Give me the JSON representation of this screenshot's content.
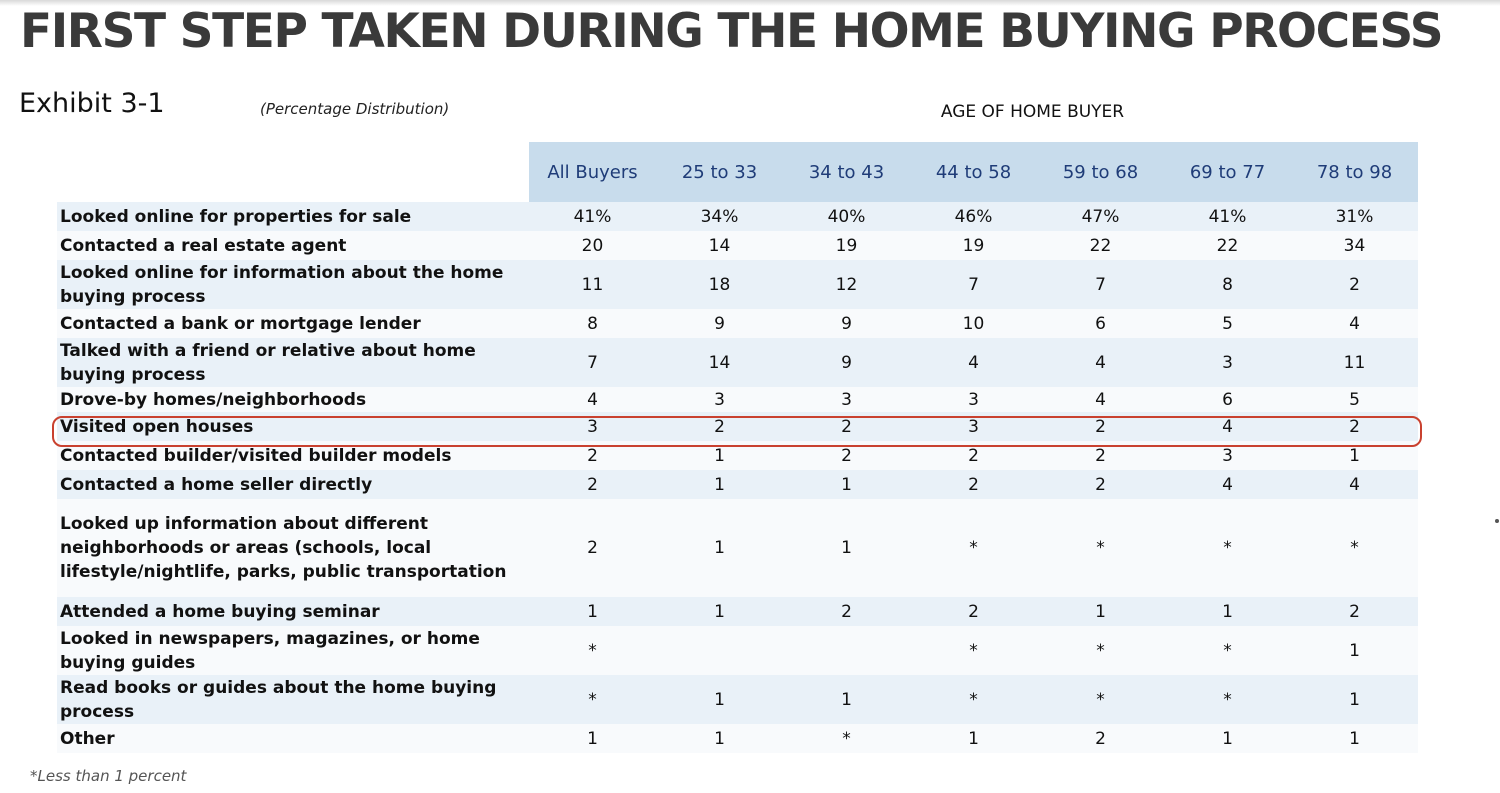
{
  "title": "FIRST STEP TAKEN DURING THE HOME BUYING PROCESS",
  "exhibit": "Exhibit 3-1",
  "subtitle": "(Percentage Distribution)",
  "group_label": "AGE OF HOME BUYER",
  "footnote": "*Less than 1 percent",
  "colors": {
    "header_bg": "#c8dcec",
    "header_text": "#1f3c78",
    "highlight": "#c9412f"
  },
  "chart_data": {
    "type": "table",
    "columns": [
      "All Buyers",
      "25 to 33",
      "34 to 43",
      "44 to 58",
      "59 to 68",
      "69 to 77",
      "78 to 98"
    ],
    "rows": [
      {
        "label": "Looked online for properties for sale",
        "values": [
          "41%",
          "34%",
          "40%",
          "46%",
          "47%",
          "41%",
          "31%"
        ]
      },
      {
        "label": "Contacted a real estate agent",
        "values": [
          "20",
          "14",
          "19",
          "19",
          "22",
          "22",
          "34"
        ]
      },
      {
        "label": "Looked online for information about the home buying process",
        "values": [
          "11",
          "18",
          "12",
          "7",
          "7",
          "8",
          "2"
        ]
      },
      {
        "label": "Contacted a bank or mortgage lender",
        "values": [
          "8",
          "9",
          "9",
          "10",
          "6",
          "5",
          "4"
        ]
      },
      {
        "label": "Talked with a friend or relative about home buying process",
        "values": [
          "7",
          "14",
          "9",
          "4",
          "4",
          "3",
          "11"
        ]
      },
      {
        "label": "Drove-by homes/neighborhoods",
        "values": [
          "4",
          "3",
          "3",
          "3",
          "4",
          "6",
          "5"
        ]
      },
      {
        "label": "Visited open houses",
        "values": [
          "3",
          "2",
          "2",
          "3",
          "2",
          "4",
          "2"
        ]
      },
      {
        "label": "Contacted builder/visited builder models",
        "values": [
          "2",
          "1",
          "2",
          "2",
          "2",
          "3",
          "1"
        ]
      },
      {
        "label": "Contacted a home seller directly",
        "values": [
          "2",
          "1",
          "1",
          "2",
          "2",
          "4",
          "4"
        ]
      },
      {
        "label": "Looked up information about different neighborhoods or areas (schools, local lifestyle/nightlife, parks, public transportation",
        "values": [
          "2",
          "1",
          "1",
          "*",
          "*",
          "*",
          "*"
        ]
      },
      {
        "label": "Attended a home buying seminar",
        "values": [
          "1",
          "1",
          "2",
          "2",
          "1",
          "1",
          "2"
        ]
      },
      {
        "label": "Looked in newspapers, magazines, or home buying guides",
        "values": [
          "*",
          "",
          "",
          "*",
          "*",
          "*",
          "1"
        ]
      },
      {
        "label": "Read books or guides about the home buying process",
        "values": [
          "*",
          "1",
          "1",
          "*",
          "*",
          "*",
          "1"
        ]
      },
      {
        "label": "Other",
        "values": [
          "1",
          "1",
          "*",
          "1",
          "2",
          "1",
          "1"
        ]
      }
    ]
  }
}
